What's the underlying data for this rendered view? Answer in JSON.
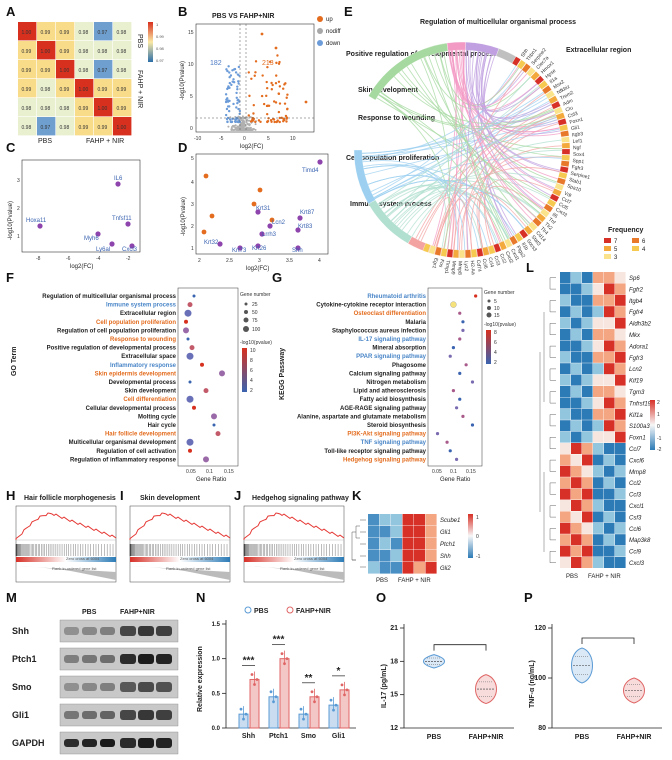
{
  "panels": {
    "A": {
      "letter": "A",
      "title_pbs": "PBS",
      "title_fahp": "FAHP + NIR",
      "xlabels": [
        "PBS",
        "FAHP + NIR"
      ],
      "matrix": [
        [
          "1.00",
          "0.99",
          "0.99",
          "0.98",
          "0.97",
          "0.98"
        ],
        [
          "0.99",
          "1.00",
          "0.99",
          "0.98",
          "0.98",
          "0.98"
        ],
        [
          "0.99",
          "0.99",
          "1.00",
          "0.98",
          "0.97",
          "0.98"
        ],
        [
          "0.99",
          "0.98",
          "0.99",
          "1.00",
          "0.99",
          "0.99"
        ],
        [
          "0.98",
          "0.98",
          "0.98",
          "0.99",
          "1.00",
          "0.99"
        ],
        [
          "0.98",
          "0.97",
          "0.98",
          "0.99",
          "0.99",
          "1.00"
        ]
      ],
      "scale": [
        "1",
        "0.99",
        "0.98",
        "0.97"
      ]
    },
    "B": {
      "letter": "B",
      "title": "PBS VS FAHP+NIR",
      "xlabel": "log2(FC)",
      "ylabel": "-log10(Pvalue)",
      "down_count": "182",
      "up_count": "213",
      "legend": [
        "up",
        "nodiff",
        "down"
      ],
      "xticks": [
        "-10",
        "-5",
        "0",
        "5",
        "10"
      ],
      "yticks": [
        "0",
        "5",
        "10",
        "15"
      ]
    },
    "C": {
      "letter": "C",
      "xlabel": "log2(FC)",
      "ylabel": "-log10(Pvalue)",
      "genes": [
        "IL6",
        "Hoxa11",
        "Tnfsf11",
        "Myh6",
        "Ly6al",
        "Cxcl3"
      ],
      "xticks": [
        "-8",
        "-6",
        "-4",
        "-2"
      ],
      "yticks": [
        "1",
        "2",
        "3"
      ]
    },
    "D": {
      "letter": "D",
      "xlabel": "log2(FC)",
      "ylabel": "-log10(Pvalue)",
      "genes": [
        "Timd4",
        "Krt31",
        "Krt87",
        "Lcn2",
        "Krt83",
        "Lrrh3",
        "Krt32",
        "Krt73",
        "Krt26",
        "Shh"
      ],
      "xticks": [
        "2",
        "2.5",
        "3",
        "3.5",
        "4"
      ],
      "yticks": [
        "1",
        "2",
        "3",
        "4",
        "5"
      ]
    },
    "E": {
      "letter": "E",
      "categories": [
        "Regulation of multicellular organismal process",
        "Positive regulation of developmental process",
        "Skin development",
        "Response to wounding",
        "Cell population proliferation",
        "Immune system process",
        "Extracellular region"
      ],
      "genes_right": [
        "Shh",
        "Thbn1",
        "Serpine2",
        "Clec7a",
        "Hmox1",
        "Hpse",
        "Il1a",
        "Msx2",
        "Nfkbiz",
        "Trem2",
        "Adm",
        "Clu",
        "Csf3",
        "Foxn1",
        "Gli1",
        "Itgb3",
        "Lef1",
        "Ngf",
        "Sox4",
        "Spp1",
        "Fgfr3",
        "Serpine1",
        "Stab1",
        "Spa10"
      ],
      "genes_bottom": [
        "Vdr",
        "Ccl7",
        "Ccl5",
        "Cxcl3",
        "Il6",
        "Tnf",
        "Tlr2",
        "Tlr4",
        "Cd14",
        "Stat3",
        "Socs3",
        "Il1b",
        "Ptgs2",
        "Cxcl1",
        "Cxcl2",
        "Ccl2",
        "Ccl3",
        "Ccl4",
        "Ccl6",
        "Cd74",
        "H2-Aa",
        "Lyz2",
        "Mmp8",
        "Mmp9",
        "Timp1",
        "Fos",
        "Egr1"
      ],
      "legend_title": "Frequency",
      "legend": [
        "7",
        "6",
        "5",
        "4",
        "3"
      ]
    },
    "F": {
      "letter": "F",
      "axis_title": "GO Term",
      "xlabel": "Gene Ratio",
      "terms": [
        "Regulation of multicellular organismal process",
        "Immune system process",
        "Extracellular region",
        "Cell population proliferation",
        "Regulation of cell population proliferation",
        "Response to wounding",
        "Positive regulation of developmental process",
        "Extracellular space",
        "Inflammatory response",
        "Skin epidermis development",
        "Developmental process",
        "Skin development",
        "Cell differentiation",
        "Cellular developmental process",
        "Molting cycle",
        "Hair cycle",
        "Hair follicle development",
        "Multicellular organismal development",
        "Regulation of cell activation",
        "Regulation of inflammatory response"
      ],
      "xticks": [
        "0.05",
        "0.1",
        "0.15"
      ],
      "size_title": "Gene number",
      "sizes": [
        "25",
        "50",
        "75",
        "100"
      ],
      "color_title": "-log10(pvalue)",
      "colors": [
        "10",
        "8",
        "6",
        "4",
        "2"
      ]
    },
    "G": {
      "letter": "G",
      "axis_title": "KEGG Passway",
      "xlabel": "Gene Ratio",
      "terms": [
        "Rheumatoid arthritis",
        "Cytokine-cytokine receptor interaction",
        "Osteoclast differentiation",
        "Malaria",
        "Staphylococcus aureus infection",
        "IL-17 signaling pathway",
        "Mineral absorption",
        "PPAR signaling pathway",
        "Phagosome",
        "Calcium signaling pathway",
        "Nitrogen metabolism",
        "Lipid and atherosclerosis",
        "Fatty acid biosynthesis",
        "AGE-RAGE signaling pathway",
        "Alanine, aspartate and glutamate metabolism",
        "Steroid biosynthesis",
        "PI3K-Akt signaling pathway",
        "TNF signaling pathway",
        "Toll-like receptor signaling pathway",
        "Hedgehog signaling pathway"
      ],
      "xticks": [
        "0.05",
        "0.1",
        "0.15"
      ],
      "size_title": "Gene number",
      "sizes": [
        "5",
        "10",
        "15"
      ],
      "color_title": "-log10(pvalue)",
      "colors": [
        "8",
        "6",
        "4",
        "2"
      ]
    },
    "H": {
      "letter": "H",
      "title": "Hair follicle morphogenesis",
      "xlabel": "Rank in ordered gene list",
      "zero": "Zero cross at 6004"
    },
    "I": {
      "letter": "I",
      "title": "Skin development",
      "xlabel": "Rank in ordered gene list",
      "zero": "Zero cross at 6004"
    },
    "J": {
      "letter": "J",
      "title": "Hedgehog signaling pathway",
      "xlabel": "Rank in ordered gene list",
      "zero": "Zero cross at 6004"
    },
    "K": {
      "letter": "K",
      "genes": [
        "Scube1",
        "Gli1",
        "Ptch1",
        "Shh",
        "Gli2"
      ],
      "xlabels": [
        "PBS",
        "FAHP + NIR"
      ],
      "scale": [
        "1",
        "0",
        "-1"
      ]
    },
    "L": {
      "letter": "L",
      "genes": [
        "Sp6",
        "Fgfr2",
        "Itgb4",
        "Fgfr4",
        "Aldh3b2",
        "Mkx",
        "Adora1",
        "Fgfr3",
        "Lcn2",
        "Kif19",
        "Tgm3",
        "Tnfrsf19",
        "Kif1a",
        "S100a3",
        "Foxn1",
        "Ccl7",
        "Cxcl6",
        "Mmp8",
        "Ccl2",
        "Ccl3",
        "Cxcl1",
        "Csf3",
        "Ccl6",
        "Map3k8",
        "Ccl9",
        "Cxcl3"
      ],
      "xlabels": [
        "PBS",
        "FAHP + NIR"
      ],
      "scale": [
        "2",
        "1",
        "0",
        "-1",
        "-2"
      ]
    },
    "M": {
      "letter": "M",
      "cols": [
        "PBS",
        "FAHP+NIR"
      ],
      "rows": [
        "Shh",
        "Ptch1",
        "Smo",
        "Gli1",
        "GAPDH"
      ]
    },
    "N": {
      "letter": "N",
      "ylabel": "Relative expression",
      "legend": [
        "PBS",
        "FAHP+NIR"
      ],
      "stars": [
        "***",
        "***",
        "**",
        "*"
      ],
      "yticks": [
        "0.0",
        "0.5",
        "1.0",
        "1.5"
      ]
    },
    "O": {
      "letter": "O",
      "ylabel": "IL-17 (pg/mL)",
      "xlabels": [
        "PBS",
        "FAHP+NIR"
      ],
      "yticks": [
        "12",
        "15",
        "18",
        "21"
      ]
    },
    "P": {
      "letter": "P",
      "ylabel": "TNF-α (ng/mL)",
      "xlabels": [
        "PBS",
        "FAHP+NIR"
      ],
      "yticks": [
        "80",
        "100",
        "120"
      ]
    }
  },
  "chart_data": [
    {
      "id": "N",
      "type": "bar",
      "title": "",
      "xlabel": "",
      "ylabel": "Relative expression",
      "ylim": [
        0,
        1.5
      ],
      "categories": [
        "Shh",
        "Ptch1",
        "Smo",
        "Gli1"
      ],
      "series": [
        {
          "name": "PBS",
          "values": [
            0.2,
            0.45,
            0.2,
            0.33
          ]
        },
        {
          "name": "FAHP+NIR",
          "values": [
            0.7,
            1.0,
            0.45,
            0.55
          ]
        }
      ]
    },
    {
      "id": "O",
      "type": "violin",
      "ylabel": "IL-17 (pg/mL)",
      "ylim": [
        12,
        21
      ],
      "categories": [
        "PBS",
        "FAHP+NIR"
      ],
      "median": [
        18.0,
        15.5
      ],
      "range": [
        [
          17.4,
          18.6
        ],
        [
          14.2,
          16.8
        ]
      ]
    },
    {
      "id": "P",
      "type": "violin",
      "ylabel": "TNF-α (ng/mL)",
      "ylim": [
        80,
        120
      ],
      "categories": [
        "PBS",
        "FAHP+NIR"
      ],
      "median": [
        105,
        95
      ],
      "range": [
        [
          98,
          112
        ],
        [
          90,
          100
        ]
      ]
    },
    {
      "id": "F",
      "type": "scatter",
      "xlabel": "Gene Ratio",
      "x": [
        0.06,
        0.05,
        0.045,
        0.04,
        0.04,
        0.045,
        0.055,
        0.05,
        0.08,
        0.13,
        0.05,
        0.09,
        0.05,
        0.06,
        0.11,
        0.11,
        0.12,
        0.05,
        0.05,
        0.09
      ]
    },
    {
      "id": "G",
      "type": "scatter",
      "xlabel": "Gene Ratio",
      "x": [
        0.17,
        0.1,
        0.12,
        0.13,
        0.13,
        0.12,
        0.1,
        0.09,
        0.14,
        0.12,
        0.16,
        0.1,
        0.12,
        0.11,
        0.13,
        0.16,
        0.05,
        0.08,
        0.09,
        0.11
      ]
    }
  ]
}
